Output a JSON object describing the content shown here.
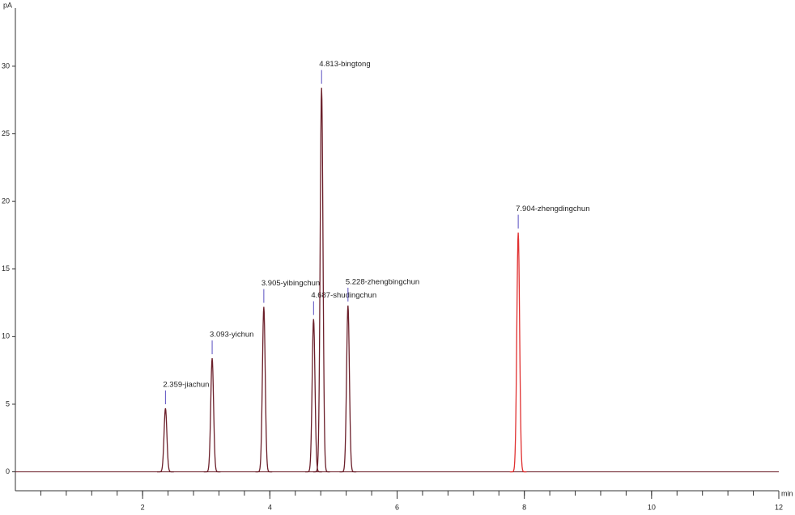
{
  "chart_data": {
    "type": "chromatogram",
    "y_label": "pA",
    "x_label": "min",
    "xlim": [
      0,
      12
    ],
    "ylim": [
      -1.4,
      34.3
    ],
    "xticks": [
      2,
      4,
      6,
      8,
      10,
      12
    ],
    "yticks": [
      0,
      5,
      10,
      15,
      20,
      25,
      30
    ],
    "peaks": {
      "x": [
        2.359,
        3.093,
        3.905,
        4.687,
        4.813,
        5.228,
        7.904
      ],
      "values": [
        4.7,
        8.4,
        12.2,
        11.3,
        28.4,
        12.3,
        17.7
      ],
      "labels": [
        "2.359-jiachun",
        "3.093-yichun",
        "3.905-yibingchun",
        "4.687-shudingchun",
        "4.813-bingtong",
        "5.228-zhengbingchun",
        "7.904-zhengdingchun"
      ],
      "colors": [
        "#6b1f2a",
        "#6b1f2a",
        "#6b1f2a",
        "#6b1f2a",
        "#6b1f2a",
        "#6b1f2a",
        "#e03030"
      ]
    },
    "baseline_color": "#6b1f2a",
    "marker_color": "#5a4fc0"
  }
}
